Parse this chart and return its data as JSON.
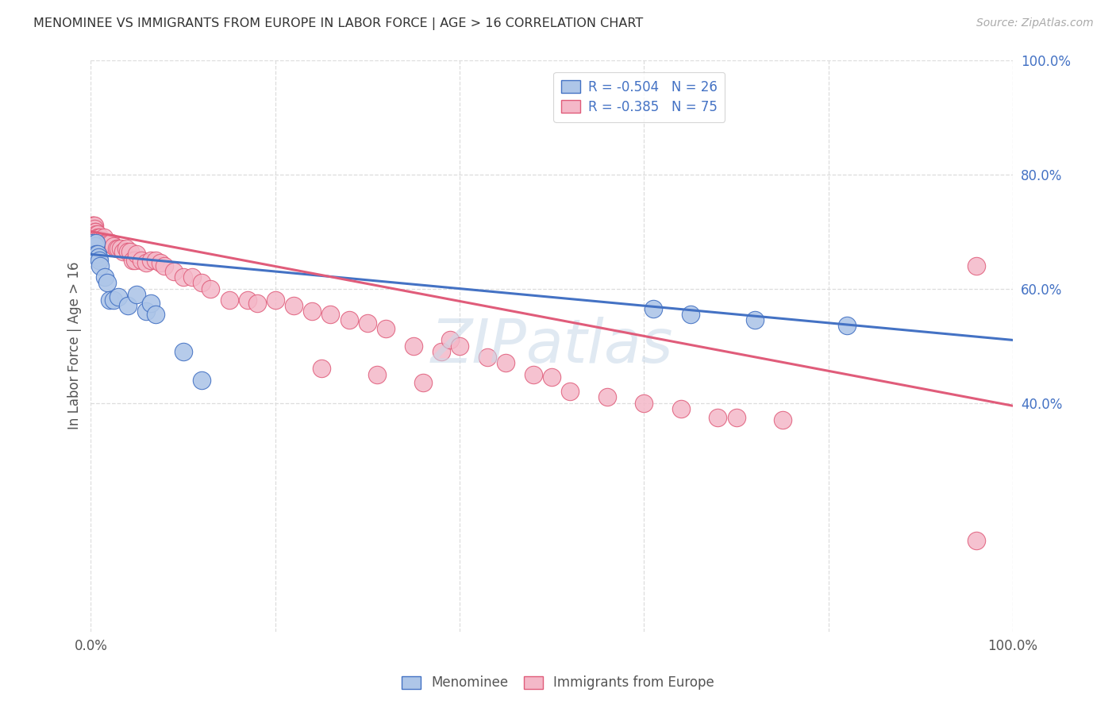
{
  "title": "MENOMINEE VS IMMIGRANTS FROM EUROPE IN LABOR FORCE | AGE > 16 CORRELATION CHART",
  "source": "Source: ZipAtlas.com",
  "ylabel": "In Labor Force | Age > 16",
  "xlim": [
    0.0,
    1.0
  ],
  "ylim": [
    0.0,
    1.0
  ],
  "right_ytick_positions": [
    1.0,
    0.8,
    0.6,
    0.4
  ],
  "right_yticklabels": [
    "100.0%",
    "80.0%",
    "60.0%",
    "40.0%"
  ],
  "watermark": "ZIPatlas",
  "legend_labels": [
    "R = -0.504   N = 26",
    "R = -0.385   N = 75"
  ],
  "blue_color": "#4472c4",
  "pink_color": "#e05c7a",
  "blue_fill": "#aec6e8",
  "pink_fill": "#f4b8c8",
  "blue_scatter_x": [
    0.002,
    0.003,
    0.004,
    0.005,
    0.006,
    0.006,
    0.007,
    0.008,
    0.009,
    0.01,
    0.015,
    0.018,
    0.02,
    0.025,
    0.03,
    0.04,
    0.05,
    0.06,
    0.065,
    0.07,
    0.1,
    0.12,
    0.61,
    0.65,
    0.72,
    0.82
  ],
  "blue_scatter_y": [
    0.68,
    0.67,
    0.665,
    0.675,
    0.68,
    0.66,
    0.66,
    0.655,
    0.65,
    0.64,
    0.62,
    0.61,
    0.58,
    0.58,
    0.585,
    0.57,
    0.59,
    0.56,
    0.575,
    0.555,
    0.49,
    0.44,
    0.565,
    0.555,
    0.545,
    0.535
  ],
  "pink_scatter_x": [
    0.001,
    0.002,
    0.002,
    0.003,
    0.003,
    0.004,
    0.004,
    0.005,
    0.005,
    0.006,
    0.006,
    0.007,
    0.007,
    0.008,
    0.009,
    0.01,
    0.01,
    0.012,
    0.014,
    0.016,
    0.018,
    0.02,
    0.022,
    0.025,
    0.028,
    0.03,
    0.032,
    0.035,
    0.038,
    0.04,
    0.043,
    0.045,
    0.048,
    0.05,
    0.055,
    0.06,
    0.065,
    0.07,
    0.075,
    0.08,
    0.09,
    0.1,
    0.11,
    0.12,
    0.13,
    0.15,
    0.17,
    0.18,
    0.2,
    0.22,
    0.24,
    0.26,
    0.28,
    0.3,
    0.32,
    0.35,
    0.38,
    0.39,
    0.4,
    0.43,
    0.45,
    0.48,
    0.5,
    0.52,
    0.56,
    0.6,
    0.64,
    0.68,
    0.7,
    0.75,
    0.25,
    0.31,
    0.36,
    0.96,
    0.96
  ],
  "pink_scatter_y": [
    0.71,
    0.71,
    0.7,
    0.71,
    0.7,
    0.71,
    0.705,
    0.7,
    0.7,
    0.695,
    0.69,
    0.695,
    0.69,
    0.69,
    0.685,
    0.69,
    0.685,
    0.68,
    0.69,
    0.68,
    0.68,
    0.68,
    0.68,
    0.675,
    0.67,
    0.67,
    0.67,
    0.665,
    0.67,
    0.665,
    0.665,
    0.65,
    0.65,
    0.66,
    0.65,
    0.645,
    0.65,
    0.65,
    0.645,
    0.64,
    0.63,
    0.62,
    0.62,
    0.61,
    0.6,
    0.58,
    0.58,
    0.575,
    0.58,
    0.57,
    0.56,
    0.555,
    0.545,
    0.54,
    0.53,
    0.5,
    0.49,
    0.51,
    0.5,
    0.48,
    0.47,
    0.45,
    0.445,
    0.42,
    0.41,
    0.4,
    0.39,
    0.375,
    0.375,
    0.37,
    0.46,
    0.45,
    0.435,
    0.16,
    0.64
  ],
  "blue_line_x": [
    0.0,
    1.0
  ],
  "blue_line_y": [
    0.66,
    0.51
  ],
  "pink_line_x": [
    0.0,
    1.0
  ],
  "pink_line_y": [
    0.7,
    0.395
  ],
  "grid_color": "#dddddd",
  "grid_yticks": [
    0.4,
    0.6,
    0.8,
    1.0
  ],
  "grid_xticks": [
    0.0,
    0.2,
    0.4,
    0.6,
    0.8,
    1.0
  ]
}
